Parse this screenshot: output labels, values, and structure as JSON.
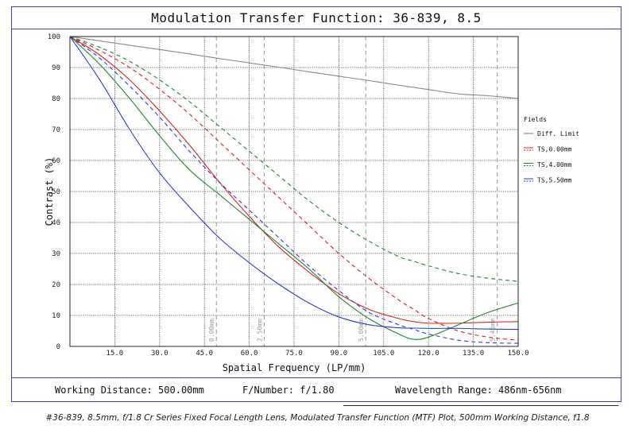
{
  "title": "Modulation Transfer Function: 36-839, 8.5",
  "footer": {
    "working_distance": "Working Distance: 500.00mm",
    "f_number": "F/Number: f/1.80",
    "wavelength": "Wavelength Range: 486nm-656nm"
  },
  "caption": "#36-839, 8.5mm, f/1.8 Cr Series Fixed Focal Length Lens, Modulated Transfer Function (MTF) Plot, 500mm Working Distance, f1.8",
  "colors": {
    "diff": "#888888",
    "red": "#e02020",
    "green": "#1f8a2e",
    "blue": "#2a3fd8",
    "frame": "#3a3dbf"
  },
  "chart_data": {
    "type": "line",
    "xlabel": "Spatial Frequency (LP/mm)",
    "ylabel": "Contrast (%)",
    "xlim": [
      0,
      150
    ],
    "ylim": [
      0,
      100
    ],
    "xticks": [
      "15.0",
      "30.0",
      "45.0",
      "60.0",
      "75.0",
      "90.0",
      "105.0",
      "120.0",
      "135.0",
      "150.0"
    ],
    "yticks": [
      "0",
      "10",
      "20",
      "30",
      "40",
      "50",
      "60",
      "70",
      "80",
      "90",
      "100"
    ],
    "legend_title": "Fields",
    "field_markers": [
      {
        "x": 49,
        "label": "0.00mm"
      },
      {
        "x": 65,
        "label": "2.50mm"
      },
      {
        "x": 99,
        "label": "5.00mm"
      },
      {
        "x": 143,
        "label": "5.45mm"
      }
    ],
    "x": [
      0,
      10,
      20,
      30,
      40,
      50,
      60,
      70,
      80,
      90,
      100,
      110,
      115,
      120,
      130,
      140,
      150
    ],
    "series": [
      {
        "name": "Diff. Limit",
        "color": "diff",
        "dash": false,
        "values": [
          100,
          98.6,
          97.2,
          95.8,
          94.4,
          92.9,
          91.5,
          90.1,
          88.6,
          87.2,
          85.8,
          84.3,
          83.6,
          82.9,
          81.5,
          80.9,
          80.0
        ]
      },
      {
        "name": "TS,0.00mm",
        "color": "red",
        "dash": false,
        "values": [
          100,
          94,
          86,
          76,
          65,
          53,
          42,
          32,
          24,
          17,
          12,
          9,
          8,
          7.5,
          7.5,
          7.8,
          8
        ]
      },
      {
        "name": "TS,0.00mm (S)",
        "color": "red",
        "dash": true,
        "values": [
          100,
          95.5,
          90,
          83,
          75,
          66,
          57,
          48,
          39,
          30,
          22,
          15,
          12,
          9,
          5,
          3,
          2
        ]
      },
      {
        "name": "TS,4.00mm",
        "color": "green",
        "dash": false,
        "values": [
          100,
          91,
          80,
          68,
          57,
          49,
          41,
          33,
          25,
          16,
          9,
          4,
          2.3,
          3,
          7,
          11,
          14
        ]
      },
      {
        "name": "TS,4.00mm (S)",
        "color": "green",
        "dash": true,
        "values": [
          100,
          96.5,
          92,
          86,
          79,
          71,
          63,
          55,
          47,
          40,
          34,
          29,
          27.5,
          26,
          23.5,
          22,
          21
        ]
      },
      {
        "name": "TS,5.50mm",
        "color": "blue",
        "dash": false,
        "values": [
          100,
          86,
          70,
          56,
          45,
          35,
          27,
          20,
          14,
          9.5,
          7,
          6,
          5.9,
          5.8,
          5.8,
          5.6,
          5.5
        ]
      },
      {
        "name": "TS,5.50mm (S)",
        "color": "blue",
        "dash": true,
        "values": [
          100,
          93,
          84,
          74,
          63,
          53,
          44,
          35,
          26,
          18,
          11,
          7,
          5.5,
          4,
          2,
          1.2,
          1
        ]
      }
    ],
    "legend": [
      {
        "label": "Diff. Limit",
        "color": "diff"
      },
      {
        "label": "TS,0.00mm",
        "color": "red"
      },
      {
        "label": "TS,4.00mm",
        "color": "green"
      },
      {
        "label": "TS,5.50mm",
        "color": "blue"
      }
    ],
    "grid": true,
    "legend_position": "right"
  }
}
